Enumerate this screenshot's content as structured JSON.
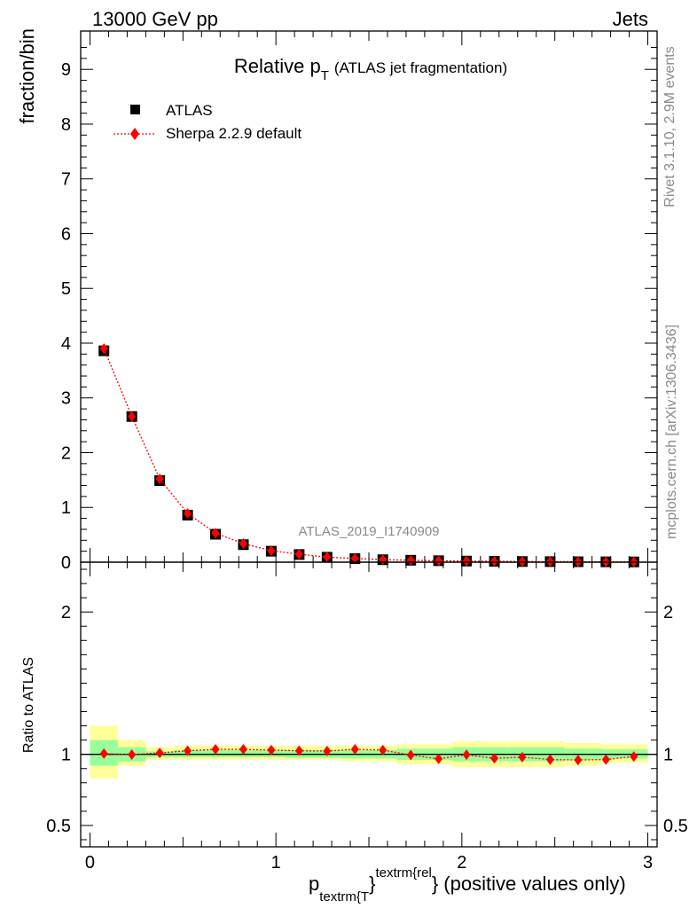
{
  "header": {
    "left": "13000 GeV pp",
    "right": "Jets"
  },
  "side_text": {
    "top": "Rivet 3.1.10,  2.9M events",
    "bottom": "mcplots.cern.ch [arXiv:1306.3436]"
  },
  "chart_data": [
    {
      "type": "scatter",
      "title": "Relative p",
      "title_sub": "T",
      "subtitle": "(ATLAS jet fragmentation)",
      "ylabel": "fraction/bin",
      "watermark": "ATLAS_2019_I1740909",
      "xlim": [
        -0.05,
        3.05
      ],
      "ylim": [
        0,
        9.7
      ],
      "yticks": [
        0,
        1,
        2,
        3,
        4,
        5,
        6,
        7,
        8,
        9
      ],
      "legend": {
        "placement": "top-left",
        "entries": [
          "ATLAS",
          "Sherpa 2.2.9 default"
        ]
      },
      "x": [
        0.075,
        0.225,
        0.375,
        0.525,
        0.675,
        0.825,
        0.975,
        1.125,
        1.275,
        1.425,
        1.575,
        1.725,
        1.875,
        2.025,
        2.175,
        2.325,
        2.475,
        2.625,
        2.775,
        2.925
      ],
      "series": [
        {
          "name": "ATLAS",
          "color": "#000000",
          "marker": "square",
          "values": [
            3.86,
            2.66,
            1.49,
            0.86,
            0.51,
            0.32,
            0.2,
            0.14,
            0.09,
            0.065,
            0.045,
            0.035,
            0.027,
            0.02,
            0.016,
            0.012,
            0.01,
            0.008,
            0.006,
            0.005
          ]
        },
        {
          "name": "Sherpa 2.2.9 default",
          "color": "#ff0000",
          "marker": "diamond",
          "values": [
            3.9,
            2.66,
            1.52,
            0.89,
            0.53,
            0.34,
            0.21,
            0.145,
            0.093,
            0.068,
            0.047,
            0.035,
            0.026,
            0.02,
            0.0155,
            0.0118,
            0.0096,
            0.0077,
            0.0058,
            0.0049
          ]
        }
      ]
    },
    {
      "type": "scatter",
      "ylabel": "Ratio to ATLAS",
      "xlabel_main": "p",
      "xlabel_sub": "textrm{T",
      "xlabel_sup": "textrm{rel",
      "xlabel_close": "}",
      "xlabel_tail": " (positive values only)",
      "xlim": [
        -0.05,
        3.05
      ],
      "ylim": [
        0.35,
        2.35
      ],
      "yticks": [
        {
          "value": 0.5,
          "label": "0.5"
        },
        {
          "value": 1,
          "label": "1"
        },
        {
          "value": 2,
          "label": "2"
        }
      ],
      "xticks": [
        {
          "value": 0,
          "label": "0"
        },
        {
          "value": 1,
          "label": "1"
        },
        {
          "value": 2,
          "label": "2"
        },
        {
          "value": 3,
          "label": "3"
        }
      ],
      "band_colors": {
        "outer": "#ffff99",
        "inner": "#99ff99"
      },
      "bands": [
        {
          "x0": 0,
          "x1": 0.15,
          "outer": [
            0.83,
            1.2
          ],
          "inner": [
            0.92,
            1.1
          ]
        },
        {
          "x0": 0.15,
          "x1": 0.3,
          "outer": [
            0.92,
            1.1
          ],
          "inner": [
            0.95,
            1.05
          ]
        },
        {
          "x0": 0.3,
          "x1": 0.45,
          "outer": [
            0.96,
            1.05
          ],
          "inner": [
            0.98,
            1.02
          ]
        },
        {
          "x0": 0.45,
          "x1": 0.75,
          "outer": [
            0.96,
            1.06
          ],
          "inner": [
            0.98,
            1.03
          ]
        },
        {
          "x0": 0.75,
          "x1": 1.05,
          "outer": [
            0.96,
            1.06
          ],
          "inner": [
            0.98,
            1.03
          ]
        },
        {
          "x0": 1.05,
          "x1": 1.35,
          "outer": [
            0.96,
            1.06
          ],
          "inner": [
            0.975,
            1.03
          ]
        },
        {
          "x0": 1.35,
          "x1": 1.65,
          "outer": [
            0.95,
            1.06
          ],
          "inner": [
            0.97,
            1.03
          ]
        },
        {
          "x0": 1.65,
          "x1": 1.95,
          "outer": [
            0.93,
            1.07
          ],
          "inner": [
            0.96,
            1.04
          ]
        },
        {
          "x0": 1.95,
          "x1": 2.25,
          "outer": [
            0.91,
            1.09
          ],
          "inner": [
            0.95,
            1.05
          ]
        },
        {
          "x0": 2.25,
          "x1": 2.55,
          "outer": [
            0.91,
            1.09
          ],
          "inner": [
            0.95,
            1.05
          ]
        },
        {
          "x0": 2.55,
          "x1": 2.75,
          "outer": [
            0.92,
            1.08
          ],
          "inner": [
            0.96,
            1.04
          ]
        },
        {
          "x0": 2.75,
          "x1": 3.0,
          "outer": [
            0.94,
            1.07
          ],
          "inner": [
            0.97,
            1.035
          ]
        }
      ],
      "x": [
        0.075,
        0.225,
        0.375,
        0.525,
        0.675,
        0.825,
        0.975,
        1.125,
        1.275,
        1.425,
        1.575,
        1.725,
        1.875,
        2.025,
        2.175,
        2.325,
        2.475,
        2.625,
        2.775,
        2.925
      ],
      "series": [
        {
          "name": "Sherpa 2.2.9 default",
          "color": "#ff0000",
          "values": [
            1.005,
            0.998,
            1.01,
            1.025,
            1.035,
            1.035,
            1.03,
            1.025,
            1.023,
            1.035,
            1.03,
            0.995,
            0.968,
            0.997,
            0.972,
            0.98,
            0.963,
            0.96,
            0.963,
            0.985
          ]
        }
      ]
    }
  ]
}
